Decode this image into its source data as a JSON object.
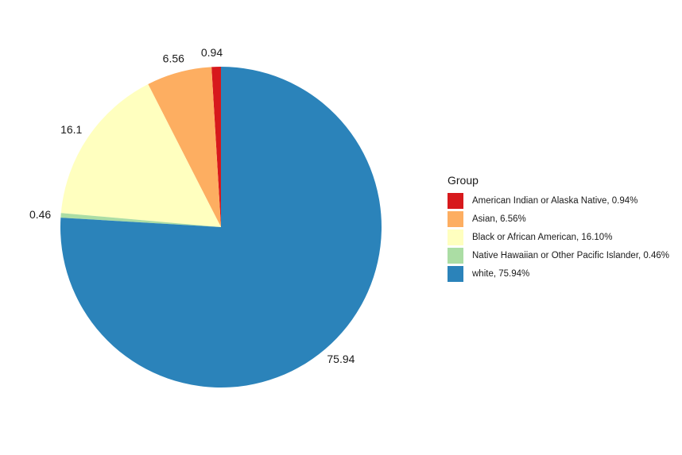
{
  "chart_data": {
    "type": "pie",
    "legend_title": "Group",
    "legend_position": "right",
    "slices": [
      {
        "name": "American Indian or Alaska Native",
        "value": 0.94,
        "label": "0.94",
        "legend": "American Indian or Alaska Native, 0.94%",
        "color": "#D7191C"
      },
      {
        "name": "Asian",
        "value": 6.56,
        "label": "6.56",
        "legend": "Asian, 6.56%",
        "color": "#FDAE61"
      },
      {
        "name": "Black or African American",
        "value": 16.1,
        "label": "16.1",
        "legend": "Black or African American, 16.10%",
        "color": "#FFFFBF"
      },
      {
        "name": "Native Hawaiian or Other Pacific Islander",
        "value": 0.46,
        "label": "0.46",
        "legend": "Native Hawaiian or Other Pacific Islander, 0.46%",
        "color": "#ABDDA4"
      },
      {
        "name": "white",
        "value": 75.94,
        "label": "75.94",
        "legend": "white, 75.94%",
        "color": "#2B83BA"
      }
    ]
  }
}
